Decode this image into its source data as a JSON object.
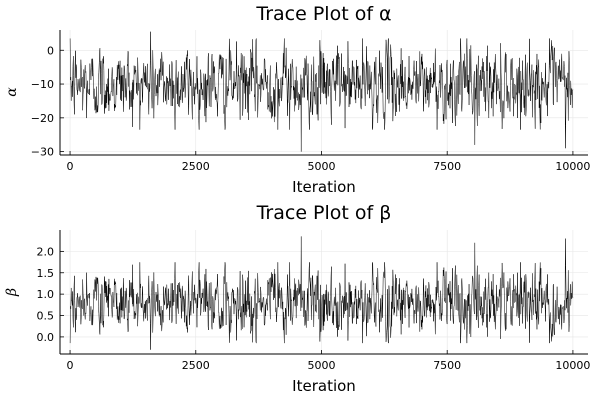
{
  "chart_data": [
    {
      "type": "line",
      "title": "Trace Plot of α",
      "xlabel": "Iteration",
      "ylabel": "α",
      "xlim": [
        -200,
        10300
      ],
      "ylim": [
        -31,
        6
      ],
      "xticks": [
        0,
        2500,
        5000,
        7500,
        10000
      ],
      "yticks": [
        -30,
        -20,
        -10,
        0
      ],
      "xtick_labels": [
        "0",
        "2500",
        "5000",
        "7500",
        "10000"
      ],
      "ytick_labels": [
        "−30",
        "−20",
        "−10",
        "0"
      ],
      "grid": true,
      "legend": "none",
      "series": [
        {
          "n_samples": 10000,
          "x_range": [
            1,
            10000
          ],
          "mean": -10,
          "typical_range": [
            -20,
            0
          ],
          "min": -30,
          "max": 5.5,
          "color": "#000000",
          "notable_points": [
            {
              "x": 1600,
              "y": 5.5
            },
            {
              "x": 4600,
              "y": -30
            },
            {
              "x": 8050,
              "y": -28
            },
            {
              "x": 9850,
              "y": -29
            }
          ]
        }
      ]
    },
    {
      "type": "line",
      "title": "Trace Plot of β",
      "xlabel": "Iteration",
      "ylabel": "β",
      "xlim": [
        -200,
        10300
      ],
      "ylim": [
        -0.4,
        2.5
      ],
      "xticks": [
        0,
        2500,
        5000,
        7500,
        10000
      ],
      "yticks": [
        0,
        0.5,
        1,
        1.5,
        2
      ],
      "xtick_labels": [
        "0",
        "2500",
        "5000",
        "7500",
        "10000"
      ],
      "ytick_labels": [
        "0.0",
        "0.5",
        "1.0",
        "1.5",
        "2.0"
      ],
      "grid": true,
      "legend": "none",
      "series": [
        {
          "n_samples": 10000,
          "x_range": [
            1,
            10000
          ],
          "mean": 0.8,
          "typical_range": [
            0.2,
            1.6
          ],
          "min": -0.3,
          "max": 2.35,
          "color": "#000000",
          "notable_points": [
            {
              "x": 1600,
              "y": -0.3
            },
            {
              "x": 4600,
              "y": 2.35
            },
            {
              "x": 8050,
              "y": 2.2
            },
            {
              "x": 9850,
              "y": 2.3
            }
          ]
        }
      ]
    }
  ]
}
